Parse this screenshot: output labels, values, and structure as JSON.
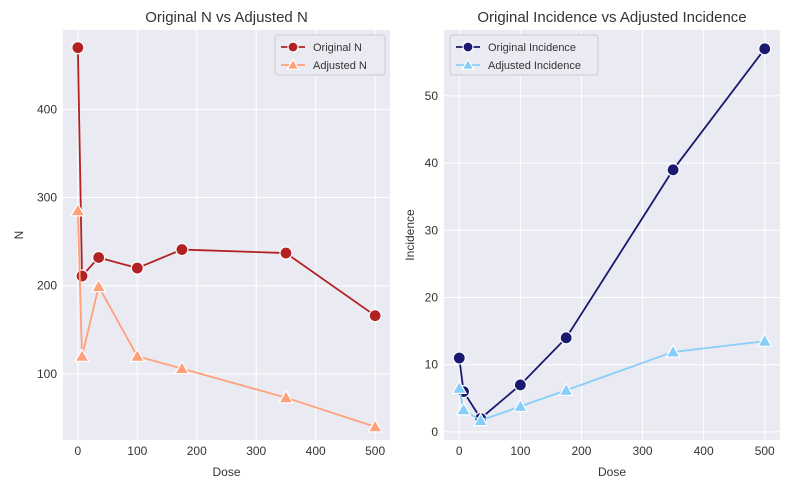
{
  "chart_data": [
    {
      "type": "line",
      "title": "Original N vs Adjusted N",
      "xlabel": "Dose",
      "ylabel": "N",
      "x": [
        0,
        7,
        35,
        100,
        175,
        350,
        500
      ],
      "xlim": [
        -25,
        525
      ],
      "ylim": [
        25,
        490
      ],
      "xticks": [
        0,
        100,
        200,
        300,
        400,
        500
      ],
      "yticks": [
        100,
        200,
        300,
        400
      ],
      "grid": true,
      "legend": "top-right",
      "series": [
        {
          "name": "Original N",
          "values": [
            470,
            211,
            232,
            220,
            241,
            237,
            166
          ],
          "color": "#b22222",
          "marker": "circle"
        },
        {
          "name": "Adjusted N",
          "values": [
            285,
            120,
            199,
            120,
            106,
            73,
            40
          ],
          "color": "#ffa07a",
          "marker": "triangle"
        }
      ]
    },
    {
      "type": "line",
      "title": "Original Incidence vs Adjusted Incidence",
      "xlabel": "Dose",
      "ylabel": "Incidence",
      "x": [
        0,
        7,
        35,
        100,
        175,
        350,
        500
      ],
      "xlim": [
        -25,
        525
      ],
      "ylim": [
        -1.2,
        59.8
      ],
      "xticks": [
        0,
        100,
        200,
        300,
        400,
        500
      ],
      "yticks": [
        0,
        10,
        20,
        30,
        40,
        50
      ],
      "grid": true,
      "legend": "top-left",
      "series": [
        {
          "name": "Original Incidence",
          "values": [
            11,
            6,
            2,
            7,
            14,
            39,
            57
          ],
          "color": "#191970",
          "marker": "circle"
        },
        {
          "name": "Adjusted Incidence",
          "values": [
            6.5,
            3.3,
            1.7,
            3.8,
            6.2,
            11.9,
            13.5
          ],
          "color": "#87cefa",
          "marker": "triangle"
        }
      ]
    }
  ]
}
